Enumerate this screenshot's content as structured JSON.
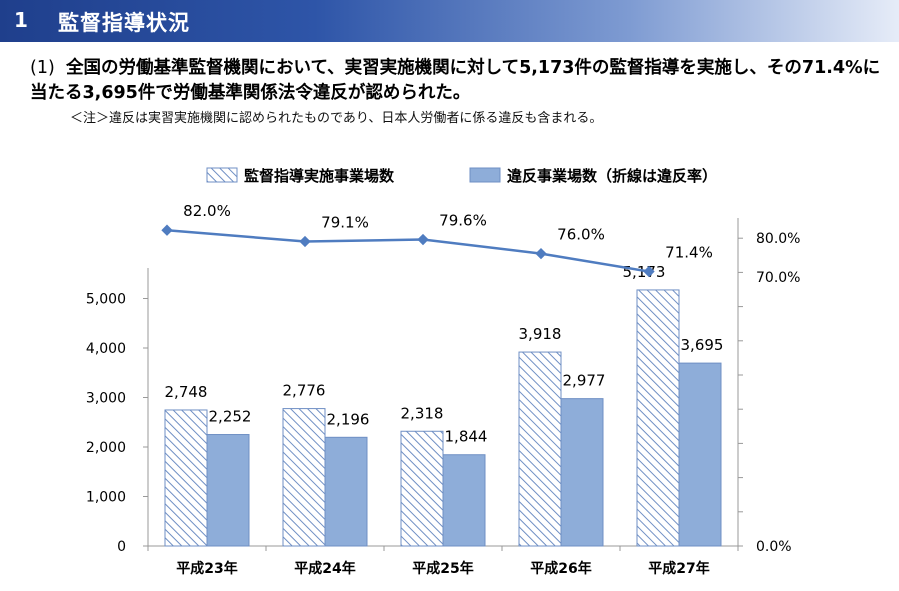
{
  "header": {
    "number": "1",
    "title": "監督指導状況"
  },
  "paragraph": {
    "number": "(1)",
    "text": "全国の労働基準監督機関において、実習実施機関に対して5,173件の監督指導を実施し、その71.4%に当たる3,695件で労働基準関係法令違反が認められた。"
  },
  "note": "＜注＞違反は実習実施機関に認められたものであり、日本人労働者に係る違反も含まれる。",
  "colors": {
    "bar_hatch": "#6f8fc4",
    "bar_solid": "#8eadd9",
    "line": "#4f7cc0",
    "header": "#1f3f8c"
  },
  "chart_data": {
    "type": "bar",
    "categories": [
      "平成23年",
      "平成24年",
      "平成25年",
      "平成26年",
      "平成27年"
    ],
    "series": [
      {
        "name": "監督指導実施事業場数",
        "values": [
          2748,
          2776,
          2318,
          3918,
          5173
        ],
        "labels": [
          "2,748",
          "2,776",
          "2,318",
          "3,918",
          "5,173"
        ],
        "pattern": "hatched"
      },
      {
        "name": "違反事業場数（折線は違反率）",
        "values": [
          2252,
          2196,
          1844,
          2977,
          3695
        ],
        "labels": [
          "2,252",
          "2,196",
          "1,844",
          "2,977",
          "3,695"
        ],
        "pattern": "solid"
      }
    ],
    "line": {
      "values": [
        82.0,
        79.1,
        79.6,
        76.0,
        71.4
      ],
      "labels": [
        "82.0%",
        "79.1%",
        "79.6%",
        "76.0%",
        "71.4%"
      ],
      "axis": "right"
    },
    "left_axis": {
      "ticks": [
        "0",
        "1,000",
        "2,000",
        "3,000",
        "4,000",
        "5,000"
      ],
      "tick_values": [
        0,
        1000,
        2000,
        3000,
        4000,
        5000
      ],
      "range": [
        0,
        5500
      ]
    },
    "right_axis": {
      "labels": [
        "0.0%",
        "70.0%",
        "80.0%"
      ],
      "label_values": [
        0,
        70,
        80
      ]
    },
    "legend_position": "top"
  }
}
